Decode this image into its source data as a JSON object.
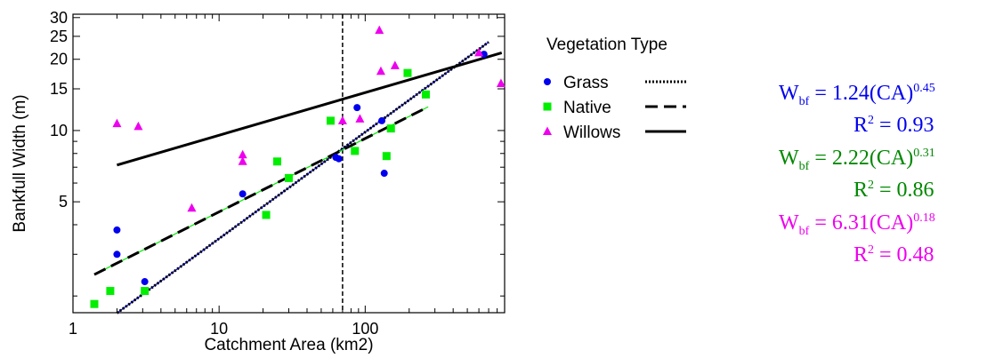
{
  "chart_data": {
    "type": "scatter",
    "xlabel": "Catchment Area (km2)",
    "ylabel": "Bankfull Width (m)",
    "xscale": "log",
    "yscale": "log",
    "xlim": [
      1,
      900
    ],
    "ylim": [
      1.7,
      31
    ],
    "x_ticks": [
      1,
      10,
      100
    ],
    "x_tick_labels": [
      "1",
      "10",
      "100"
    ],
    "y_ticks": [
      5,
      10,
      15,
      20,
      25,
      30
    ],
    "y_tick_labels": [
      "5",
      "10",
      "15",
      "20",
      "25",
      "30"
    ],
    "vertical_reference_x": 70,
    "legend_title": "Vegetation Type",
    "legend_placement": "right",
    "series": [
      {
        "name": "Grass",
        "marker": "circle",
        "color": "#0000ee",
        "line_style": "dotted",
        "points": [
          [
            2,
            3.8
          ],
          [
            2,
            3
          ],
          [
            3.1,
            2.3
          ],
          [
            14.5,
            5.4
          ],
          [
            63,
            7.7
          ],
          [
            66,
            7.6
          ],
          [
            88,
            12.5
          ],
          [
            130,
            11
          ],
          [
            135,
            6.6
          ],
          [
            650,
            21
          ]
        ],
        "fit": {
          "a": 1.24,
          "b": 0.45,
          "x_range": [
            2,
            700
          ]
        }
      },
      {
        "name": "Native",
        "marker": "square",
        "color": "#00ee00",
        "line_style": "dashed",
        "points": [
          [
            1.4,
            1.85
          ],
          [
            1.8,
            2.1
          ],
          [
            3.1,
            2.1
          ],
          [
            21,
            4.4
          ],
          [
            25,
            7.4
          ],
          [
            30,
            6.3
          ],
          [
            58,
            11
          ],
          [
            85,
            8.2
          ],
          [
            140,
            7.8
          ],
          [
            150,
            10.2
          ],
          [
            195,
            17.5
          ],
          [
            260,
            14.2
          ]
        ],
        "fit": {
          "a": 2.22,
          "b": 0.31,
          "x_range": [
            1.4,
            270
          ]
        }
      },
      {
        "name": "Willows",
        "marker": "triangle",
        "color": "#ee00ee",
        "line_style": "solid",
        "points": [
          [
            2,
            10.7
          ],
          [
            2.8,
            10.4
          ],
          [
            6.5,
            4.7
          ],
          [
            14.5,
            7.4
          ],
          [
            14.5,
            7.9
          ],
          [
            70,
            11
          ],
          [
            92,
            11.2
          ],
          [
            125,
            26.5
          ],
          [
            128,
            17.8
          ],
          [
            160,
            18.8
          ],
          [
            600,
            21.3
          ],
          [
            850,
            15.8
          ]
        ],
        "fit": {
          "a": 6.31,
          "b": 0.18,
          "x_range": [
            2,
            860
          ]
        }
      }
    ]
  },
  "equations": [
    {
      "lhs": "W",
      "sub": "bf",
      "rhs": " = 1.24(CA)",
      "exp": "0.45",
      "r2": "0.93",
      "color": "#0000ee"
    },
    {
      "lhs": "W",
      "sub": "bf",
      "rhs": " = 2.22(CA)",
      "exp": "0.31",
      "r2": "0.86",
      "color": "#008800"
    },
    {
      "lhs": "W",
      "sub": "bf",
      "rhs": " = 6.31(CA)",
      "exp": "0.18",
      "r2": "0.48",
      "color": "#ee00ee"
    }
  ],
  "r2_prefix": "R",
  "r2_exp": "2",
  "r2_eq": " = "
}
